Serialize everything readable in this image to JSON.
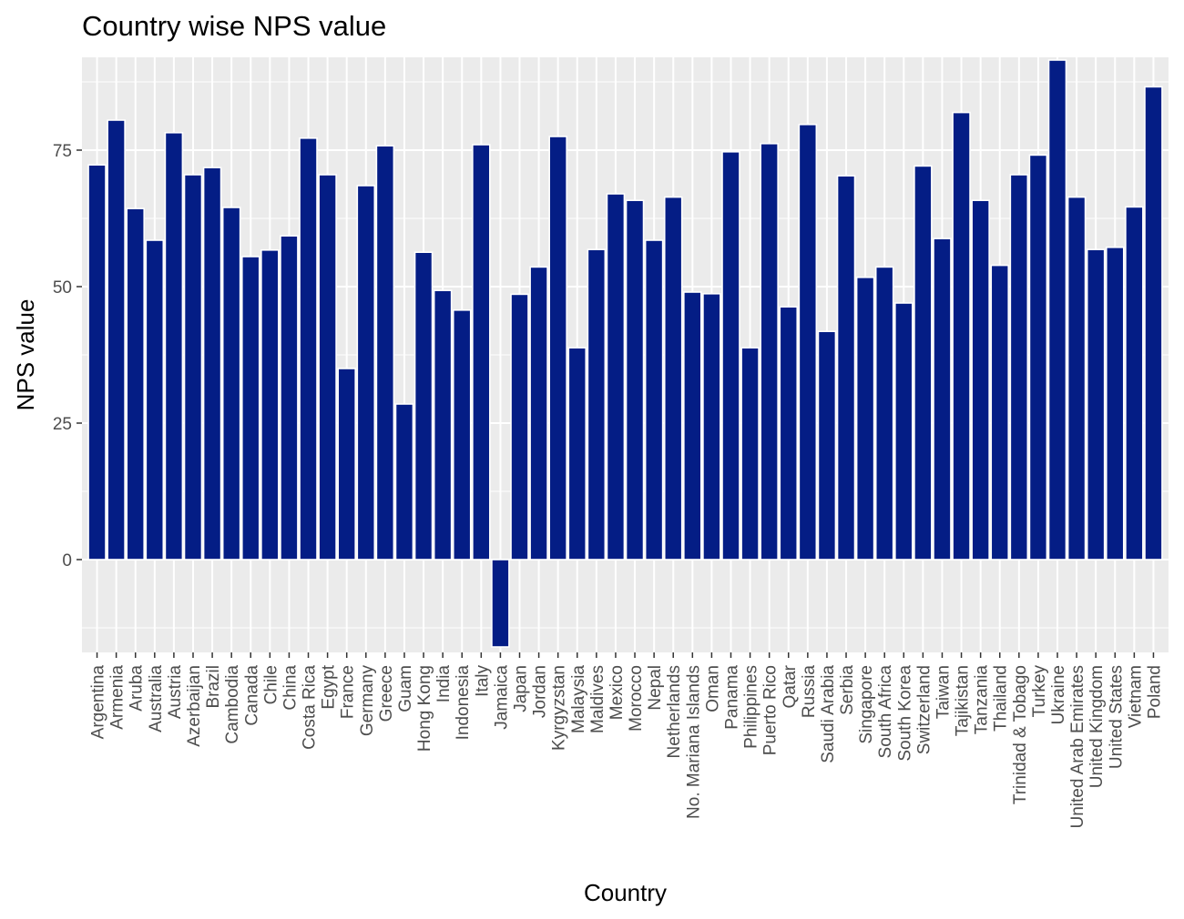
{
  "chart_data": {
    "type": "bar",
    "title": "Country wise NPS value",
    "xlabel": "Country",
    "ylabel": "NPS value",
    "ylim": [
      -17,
      92
    ],
    "yticks": [
      0,
      25,
      50,
      75
    ],
    "grid": true,
    "legend": "none",
    "colors": {
      "bar_fill": "#041d85",
      "bar_outline": "#ffffff",
      "panel_bg": "#ebebeb",
      "grid_major": "#ffffff",
      "tick_text": "#4d4d4d"
    },
    "categories": [
      "Argentina",
      "Armenia",
      "Aruba",
      "Australia",
      "Austria",
      "Azerbaijan",
      "Brazil",
      "Cambodia",
      "Canada",
      "Chile",
      "China",
      "Costa Rica",
      "Egypt",
      "France",
      "Germany",
      "Greece",
      "Guam",
      "Hong Kong",
      "India",
      "Indonesia",
      "Italy",
      "Jamaica",
      "Japan",
      "Jordan",
      "Kyrgyzstan",
      "Malaysia",
      "Maldives",
      "Mexico",
      "Morocco",
      "Nepal",
      "Netherlands",
      "No. Mariana Islands",
      "Oman",
      "Panama",
      "Philippines",
      "Puerto Rico",
      "Qatar",
      "Russia",
      "Saudi Arabia",
      "Serbia",
      "Singapore",
      "South Africa",
      "South Korea",
      "Switzerland",
      "Taiwan",
      "Tajikistan",
      "Tanzania",
      "Thailand",
      "Trinidad & Tobago",
      "Turkey",
      "Ukraine",
      "United Arab Emirates",
      "United Kingdom",
      "United States",
      "Vietnam",
      "Poland"
    ],
    "values": [
      72.3,
      80.5,
      64.3,
      58.5,
      78.2,
      70.5,
      71.8,
      64.5,
      55.5,
      56.7,
      59.3,
      77.2,
      70.5,
      35,
      68.5,
      75.8,
      28.5,
      56.3,
      49.3,
      45.7,
      76,
      -16,
      48.6,
      53.6,
      77.5,
      38.8,
      56.8,
      67,
      65.8,
      58.5,
      66.4,
      49,
      48.7,
      74.7,
      38.8,
      76.2,
      46.3,
      79.7,
      41.8,
      70.3,
      51.7,
      53.6,
      47,
      72.1,
      58.8,
      81.9,
      65.8,
      53.9,
      70.5,
      74.1,
      91.5,
      66.4,
      56.8,
      57.2,
      64.6,
      86.6
    ]
  }
}
